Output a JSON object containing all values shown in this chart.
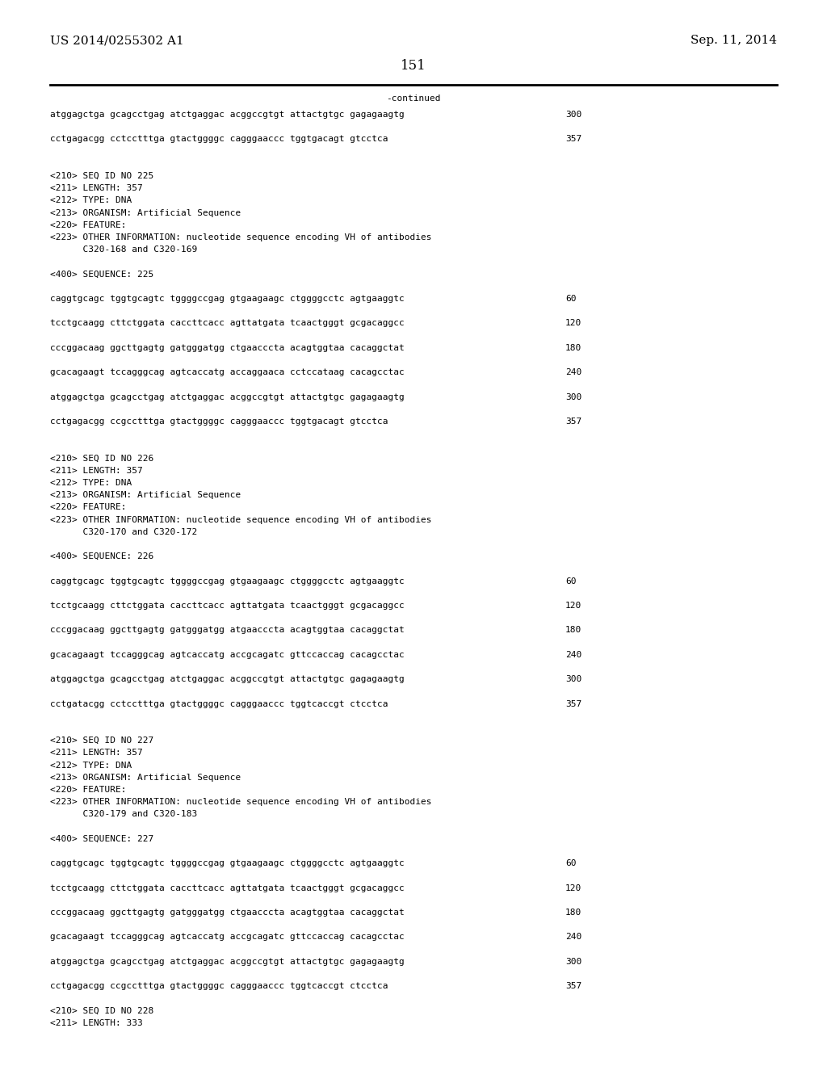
{
  "header_left": "US 2014/0255302 A1",
  "header_right": "Sep. 11, 2014",
  "page_number": "151",
  "continued_label": "-continued",
  "background_color": "#ffffff",
  "text_color": "#000000",
  "font_size_header": 11,
  "font_size_body": 8.0,
  "font_size_page": 12,
  "lines": [
    {
      "text": "atggagctga gcagcctgag atctgaggac acggccgtgt attactgtgc gagagaagtg",
      "num": "300"
    },
    {
      "text": "",
      "num": ""
    },
    {
      "text": "cctgagacgg cctcctttga gtactggggc cagggaaccc tggtgacagt gtcctca",
      "num": "357"
    },
    {
      "text": "",
      "num": ""
    },
    {
      "text": "",
      "num": ""
    },
    {
      "text": "<210> SEQ ID NO 225",
      "num": ""
    },
    {
      "text": "<211> LENGTH: 357",
      "num": ""
    },
    {
      "text": "<212> TYPE: DNA",
      "num": ""
    },
    {
      "text": "<213> ORGANISM: Artificial Sequence",
      "num": ""
    },
    {
      "text": "<220> FEATURE:",
      "num": ""
    },
    {
      "text": "<223> OTHER INFORMATION: nucleotide sequence encoding VH of antibodies",
      "num": ""
    },
    {
      "text": "      C320-168 and C320-169",
      "num": ""
    },
    {
      "text": "",
      "num": ""
    },
    {
      "text": "<400> SEQUENCE: 225",
      "num": ""
    },
    {
      "text": "",
      "num": ""
    },
    {
      "text": "caggtgcagc tggtgcagtc tggggccgag gtgaagaagc ctggggcctc agtgaaggtc",
      "num": "60"
    },
    {
      "text": "",
      "num": ""
    },
    {
      "text": "tcctgcaagg cttctggata caccttcacc agttatgata tcaactgggt gcgacaggcc",
      "num": "120"
    },
    {
      "text": "",
      "num": ""
    },
    {
      "text": "cccggacaag ggcttgagtg gatgggatgg ctgaacccta acagtggtaa cacaggctat",
      "num": "180"
    },
    {
      "text": "",
      "num": ""
    },
    {
      "text": "gcacagaagt tccagggcag agtcaccatg accaggaaca cctccataag cacagcctac",
      "num": "240"
    },
    {
      "text": "",
      "num": ""
    },
    {
      "text": "atggagctga gcagcctgag atctgaggac acggccgtgt attactgtgc gagagaagtg",
      "num": "300"
    },
    {
      "text": "",
      "num": ""
    },
    {
      "text": "cctgagacgg ccgcctttga gtactggggc cagggaaccc tggtgacagt gtcctca",
      "num": "357"
    },
    {
      "text": "",
      "num": ""
    },
    {
      "text": "",
      "num": ""
    },
    {
      "text": "<210> SEQ ID NO 226",
      "num": ""
    },
    {
      "text": "<211> LENGTH: 357",
      "num": ""
    },
    {
      "text": "<212> TYPE: DNA",
      "num": ""
    },
    {
      "text": "<213> ORGANISM: Artificial Sequence",
      "num": ""
    },
    {
      "text": "<220> FEATURE:",
      "num": ""
    },
    {
      "text": "<223> OTHER INFORMATION: nucleotide sequence encoding VH of antibodies",
      "num": ""
    },
    {
      "text": "      C320-170 and C320-172",
      "num": ""
    },
    {
      "text": "",
      "num": ""
    },
    {
      "text": "<400> SEQUENCE: 226",
      "num": ""
    },
    {
      "text": "",
      "num": ""
    },
    {
      "text": "caggtgcagc tggtgcagtc tggggccgag gtgaagaagc ctggggcctc agtgaaggtc",
      "num": "60"
    },
    {
      "text": "",
      "num": ""
    },
    {
      "text": "tcctgcaagg cttctggata caccttcacc agttatgata tcaactgggt gcgacaggcc",
      "num": "120"
    },
    {
      "text": "",
      "num": ""
    },
    {
      "text": "cccggacaag ggcttgagtg gatgggatgg atgaacccta acagtggtaa cacaggctat",
      "num": "180"
    },
    {
      "text": "",
      "num": ""
    },
    {
      "text": "gcacagaagt tccagggcag agtcaccatg accgcagatc gttccaccag cacagcctac",
      "num": "240"
    },
    {
      "text": "",
      "num": ""
    },
    {
      "text": "atggagctga gcagcctgag atctgaggac acggccgtgt attactgtgc gagagaagtg",
      "num": "300"
    },
    {
      "text": "",
      "num": ""
    },
    {
      "text": "cctgatacgg cctcctttga gtactggggc cagggaaccc tggtcaccgt ctcctca",
      "num": "357"
    },
    {
      "text": "",
      "num": ""
    },
    {
      "text": "",
      "num": ""
    },
    {
      "text": "<210> SEQ ID NO 227",
      "num": ""
    },
    {
      "text": "<211> LENGTH: 357",
      "num": ""
    },
    {
      "text": "<212> TYPE: DNA",
      "num": ""
    },
    {
      "text": "<213> ORGANISM: Artificial Sequence",
      "num": ""
    },
    {
      "text": "<220> FEATURE:",
      "num": ""
    },
    {
      "text": "<223> OTHER INFORMATION: nucleotide sequence encoding VH of antibodies",
      "num": ""
    },
    {
      "text": "      C320-179 and C320-183",
      "num": ""
    },
    {
      "text": "",
      "num": ""
    },
    {
      "text": "<400> SEQUENCE: 227",
      "num": ""
    },
    {
      "text": "",
      "num": ""
    },
    {
      "text": "caggtgcagc tggtgcagtc tggggccgag gtgaagaagc ctggggcctc agtgaaggtc",
      "num": "60"
    },
    {
      "text": "",
      "num": ""
    },
    {
      "text": "tcctgcaagg cttctggata caccttcacc agttatgata tcaactgggt gcgacaggcc",
      "num": "120"
    },
    {
      "text": "",
      "num": ""
    },
    {
      "text": "cccggacaag ggcttgagtg gatgggatgg ctgaacccta acagtggtaa cacaggctat",
      "num": "180"
    },
    {
      "text": "",
      "num": ""
    },
    {
      "text": "gcacagaagt tccagggcag agtcaccatg accgcagatc gttccaccag cacagcctac",
      "num": "240"
    },
    {
      "text": "",
      "num": ""
    },
    {
      "text": "atggagctga gcagcctgag atctgaggac acggccgtgt attactgtgc gagagaagtg",
      "num": "300"
    },
    {
      "text": "",
      "num": ""
    },
    {
      "text": "cctgagacgg ccgcctttga gtactggggc cagggaaccc tggtcaccgt ctcctca",
      "num": "357"
    },
    {
      "text": "",
      "num": ""
    },
    {
      "text": "<210> SEQ ID NO 228",
      "num": ""
    },
    {
      "text": "<211> LENGTH: 333",
      "num": ""
    }
  ]
}
